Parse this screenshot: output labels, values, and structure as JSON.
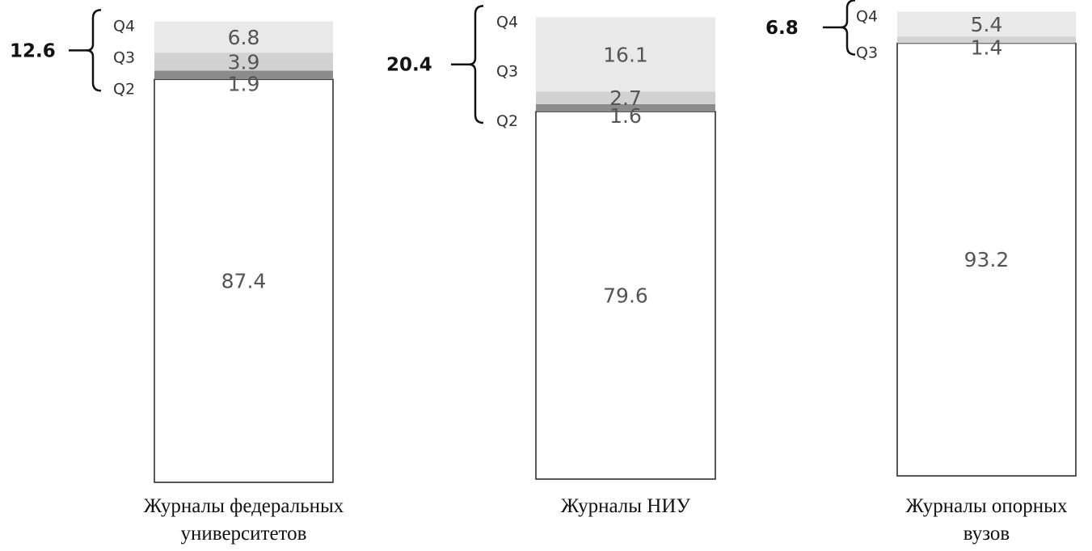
{
  "chart_data": {
    "type": "bar",
    "stacked": true,
    "colors": {
      "base": "#ffffff",
      "Q2": "#8c8c8c",
      "Q3": "#d2d2d2",
      "Q4": "#e9e9e9",
      "outline": "#222222"
    },
    "bars": [
      {
        "category": [
          "Журналы федеральных",
          "университетов"
        ],
        "base": "87.4",
        "segments": [
          {
            "quartile": "Q2",
            "value": "1.9"
          },
          {
            "quartile": "Q3",
            "value": "3.9"
          },
          {
            "quartile": "Q4",
            "value": "6.8"
          }
        ],
        "bracket_total": "12.6"
      },
      {
        "category": [
          "Журналы НИУ"
        ],
        "base": "79.6",
        "segments": [
          {
            "quartile": "Q2",
            "value": "1.6"
          },
          {
            "quartile": "Q3",
            "value": "2.7"
          },
          {
            "quartile": "Q4",
            "value": "16.1"
          }
        ],
        "bracket_total": "20.4"
      },
      {
        "category": [
          "Журналы опорных",
          "вузов"
        ],
        "base": "93.2",
        "segments": [
          {
            "quartile": "Q3",
            "value": "1.4"
          },
          {
            "quartile": "Q4",
            "value": "5.4"
          }
        ],
        "bracket_total": "6.8"
      }
    ]
  }
}
